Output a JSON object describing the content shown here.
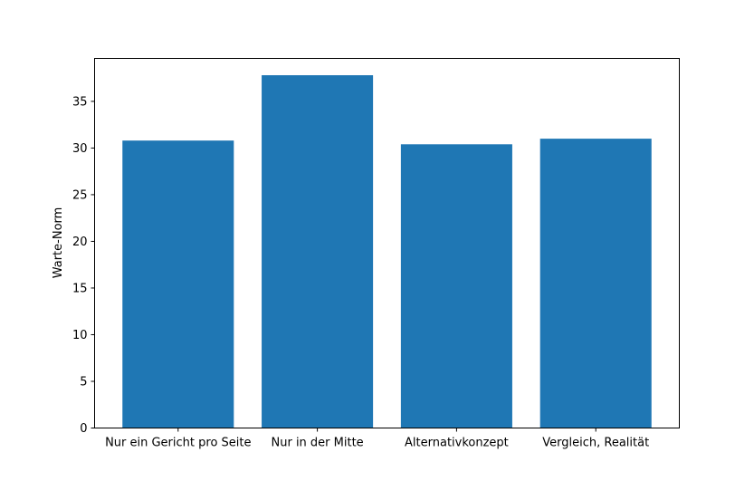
{
  "chart_data": {
    "type": "bar",
    "categories": [
      "Nur ein Gericht pro Seite",
      "Nur in der Mitte",
      "Alternativkonzept",
      "Vergleich, Realität"
    ],
    "values": [
      30.8,
      37.8,
      30.4,
      31.0
    ],
    "title": "",
    "xlabel": "",
    "ylabel": "Warte-Norm",
    "ylim": [
      0,
      39.6
    ],
    "yticks": [
      0,
      5,
      10,
      15,
      20,
      25,
      30,
      35
    ],
    "grid": false,
    "bar_color": "#1f77b4"
  }
}
